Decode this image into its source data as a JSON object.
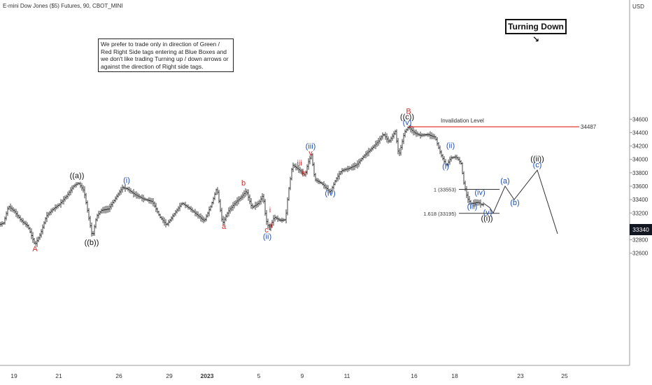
{
  "symbol_title": "E-mini Dow Jones ($5) Futures, 90, CBOT_MINI",
  "axis_unit": "USD",
  "note_text": "We prefer to trade only in direction of Green / Red Right Side tags entering at Blue Boxes and we don't like trading Turning up / down arrows or against the direction of Right side tags.",
  "turning_label": "Turning Down",
  "turning_icon": "trend-down-arrow-icon",
  "last_price": "33340",
  "chart_data": {
    "type": "line",
    "title": "E-mini Dow Jones ($5) Futures, 90, CBOT_MINI",
    "xlabel": "",
    "ylabel": "USD",
    "ylim": [
      32520,
      34700
    ],
    "grid": false,
    "x_ticks": [
      "19",
      "21",
      "26",
      "29",
      "2023",
      "5",
      "9",
      "11",
      "16",
      "18",
      "23",
      "25"
    ],
    "y_ticks": [
      32600,
      32800,
      33000,
      33200,
      33400,
      33600,
      33800,
      34000,
      34200,
      34400,
      34600
    ],
    "invalidation": {
      "label": "Invalidation Level",
      "value": 34487
    },
    "fib_levels": [
      {
        "label": "1 (33553)",
        "value": 33553
      },
      {
        "label": "1.618 (33195)",
        "value": 33195
      }
    ],
    "price_path": [
      {
        "x": 0,
        "y": 33030
      },
      {
        "x": 5,
        "y": 33050
      },
      {
        "x": 12,
        "y": 33300
      },
      {
        "x": 20,
        "y": 33230
      },
      {
        "x": 30,
        "y": 33090
      },
      {
        "x": 40,
        "y": 33000
      },
      {
        "x": 50,
        "y": 32725
      },
      {
        "x": 58,
        "y": 32890
      },
      {
        "x": 66,
        "y": 33150
      },
      {
        "x": 75,
        "y": 33250
      },
      {
        "x": 85,
        "y": 33330
      },
      {
        "x": 95,
        "y": 33450
      },
      {
        "x": 105,
        "y": 33600
      },
      {
        "x": 112,
        "y": 33650
      },
      {
        "x": 120,
        "y": 33530
      },
      {
        "x": 126,
        "y": 33180
      },
      {
        "x": 132,
        "y": 32840
      },
      {
        "x": 138,
        "y": 33150
      },
      {
        "x": 145,
        "y": 33240
      },
      {
        "x": 155,
        "y": 33260
      },
      {
        "x": 165,
        "y": 33420
      },
      {
        "x": 175,
        "y": 33580
      },
      {
        "x": 182,
        "y": 33560
      },
      {
        "x": 192,
        "y": 33480
      },
      {
        "x": 205,
        "y": 33410
      },
      {
        "x": 218,
        "y": 33370
      },
      {
        "x": 228,
        "y": 33150
      },
      {
        "x": 238,
        "y": 33020
      },
      {
        "x": 248,
        "y": 33170
      },
      {
        "x": 260,
        "y": 33350
      },
      {
        "x": 272,
        "y": 33260
      },
      {
        "x": 282,
        "y": 33170
      },
      {
        "x": 292,
        "y": 33080
      },
      {
        "x": 302,
        "y": 33320
      },
      {
        "x": 310,
        "y": 33580
      },
      {
        "x": 318,
        "y": 33040
      },
      {
        "x": 326,
        "y": 33220
      },
      {
        "x": 336,
        "y": 33350
      },
      {
        "x": 345,
        "y": 33440
      },
      {
        "x": 352,
        "y": 33530
      },
      {
        "x": 360,
        "y": 33280
      },
      {
        "x": 370,
        "y": 33350
      },
      {
        "x": 376,
        "y": 33470
      },
      {
        "x": 380,
        "y": 33100
      },
      {
        "x": 385,
        "y": 32960
      },
      {
        "x": 392,
        "y": 33140
      },
      {
        "x": 400,
        "y": 33090
      },
      {
        "x": 408,
        "y": 33100
      },
      {
        "x": 412,
        "y": 33500
      },
      {
        "x": 418,
        "y": 33920
      },
      {
        "x": 428,
        "y": 33840
      },
      {
        "x": 436,
        "y": 33760
      },
      {
        "x": 440,
        "y": 33940
      },
      {
        "x": 445,
        "y": 34070
      },
      {
        "x": 450,
        "y": 33700
      },
      {
        "x": 460,
        "y": 33640
      },
      {
        "x": 472,
        "y": 33510
      },
      {
        "x": 480,
        "y": 33700
      },
      {
        "x": 488,
        "y": 33830
      },
      {
        "x": 500,
        "y": 33870
      },
      {
        "x": 510,
        "y": 33920
      },
      {
        "x": 520,
        "y": 34050
      },
      {
        "x": 530,
        "y": 34150
      },
      {
        "x": 540,
        "y": 34260
      },
      {
        "x": 548,
        "y": 34380
      },
      {
        "x": 556,
        "y": 34260
      },
      {
        "x": 565,
        "y": 34420
      },
      {
        "x": 570,
        "y": 34050
      },
      {
        "x": 578,
        "y": 34400
      },
      {
        "x": 584,
        "y": 34487
      },
      {
        "x": 592,
        "y": 34400
      },
      {
        "x": 600,
        "y": 34360
      },
      {
        "x": 612,
        "y": 34370
      },
      {
        "x": 622,
        "y": 34330
      },
      {
        "x": 630,
        "y": 34080
      },
      {
        "x": 638,
        "y": 33900
      },
      {
        "x": 644,
        "y": 34020
      },
      {
        "x": 652,
        "y": 34040
      },
      {
        "x": 659,
        "y": 33940
      },
      {
        "x": 663,
        "y": 33650
      },
      {
        "x": 668,
        "y": 33420
      },
      {
        "x": 673,
        "y": 33340
      },
      {
        "x": 678,
        "y": 33350
      },
      {
        "x": 684,
        "y": 33360
      },
      {
        "x": 688,
        "y": 33320
      },
      {
        "x": 692,
        "y": 33340
      }
    ],
    "projection_path": [
      {
        "x": 692,
        "y": 33340
      },
      {
        "x": 700,
        "y": 33280
      },
      {
        "x": 705,
        "y": 33200
      },
      {
        "x": 722,
        "y": 33600
      },
      {
        "x": 735,
        "y": 33400
      },
      {
        "x": 768,
        "y": 33840
      },
      {
        "x": 797,
        "y": 32890
      }
    ],
    "annotations": [
      {
        "text": "A",
        "color": "#d32f2f",
        "x": 50,
        "y": 32630
      },
      {
        "text": "((a))",
        "color": "#111111",
        "x": 110,
        "y": 33720
      },
      {
        "text": "((b))",
        "color": "#111111",
        "x": 131,
        "y": 32720
      },
      {
        "text": "(i)",
        "color": "#1e4fb8",
        "x": 181,
        "y": 33650
      },
      {
        "text": "a",
        "color": "#d32f2f",
        "x": 320,
        "y": 32960
      },
      {
        "text": "b",
        "color": "#d32f2f",
        "x": 348,
        "y": 33610
      },
      {
        "text": "i",
        "color": "#d32f2f",
        "x": 386,
        "y": 33210
      },
      {
        "text": "ii",
        "color": "#d32f2f",
        "x": 387,
        "y": 32980
      },
      {
        "text": "c",
        "color": "#d32f2f",
        "x": 381,
        "y": 32910
      },
      {
        "text": "(ii)",
        "color": "#1e4fb8",
        "x": 382,
        "y": 32810
      },
      {
        "text": "iii",
        "color": "#d32f2f",
        "x": 428,
        "y": 33910
      },
      {
        "text": "iv",
        "color": "#d32f2f",
        "x": 435,
        "y": 33760
      },
      {
        "text": "(iii)",
        "color": "#1e4fb8",
        "x": 444,
        "y": 34160
      },
      {
        "text": "v",
        "color": "#d32f2f",
        "x": 444,
        "y": 34060
      },
      {
        "text": "(iv)",
        "color": "#1e4fb8",
        "x": 472,
        "y": 33460
      },
      {
        "text": "B",
        "color": "#d32f2f",
        "x": 584,
        "y": 34680
      },
      {
        "text": "((c))",
        "color": "#111111",
        "x": 582,
        "y": 34600
      },
      {
        "text": "(v)",
        "color": "#1e4fb8",
        "x": 582,
        "y": 34515
      },
      {
        "text": "(ii)",
        "color": "#1e4fb8",
        "x": 644,
        "y": 34170
      },
      {
        "text": "(i)",
        "color": "#1e4fb8",
        "x": 637,
        "y": 33860
      },
      {
        "text": "(iii)",
        "color": "#1e4fb8",
        "x": 675,
        "y": 33260
      },
      {
        "text": "(iv)",
        "color": "#1e4fb8",
        "x": 686,
        "y": 33470
      },
      {
        "text": "(v)",
        "color": "#1e4fb8",
        "x": 697,
        "y": 33170
      },
      {
        "text": "((i))",
        "color": "#111111",
        "x": 696,
        "y": 33085
      },
      {
        "text": "(a)",
        "color": "#1e4fb8",
        "x": 722,
        "y": 33640
      },
      {
        "text": "(b)",
        "color": "#1e4fb8",
        "x": 736,
        "y": 33320
      },
      {
        "text": "((ii))",
        "color": "#111111",
        "x": 768,
        "y": 33970
      },
      {
        "text": "(c)",
        "color": "#1e4fb8",
        "x": 768,
        "y": 33880
      }
    ]
  }
}
